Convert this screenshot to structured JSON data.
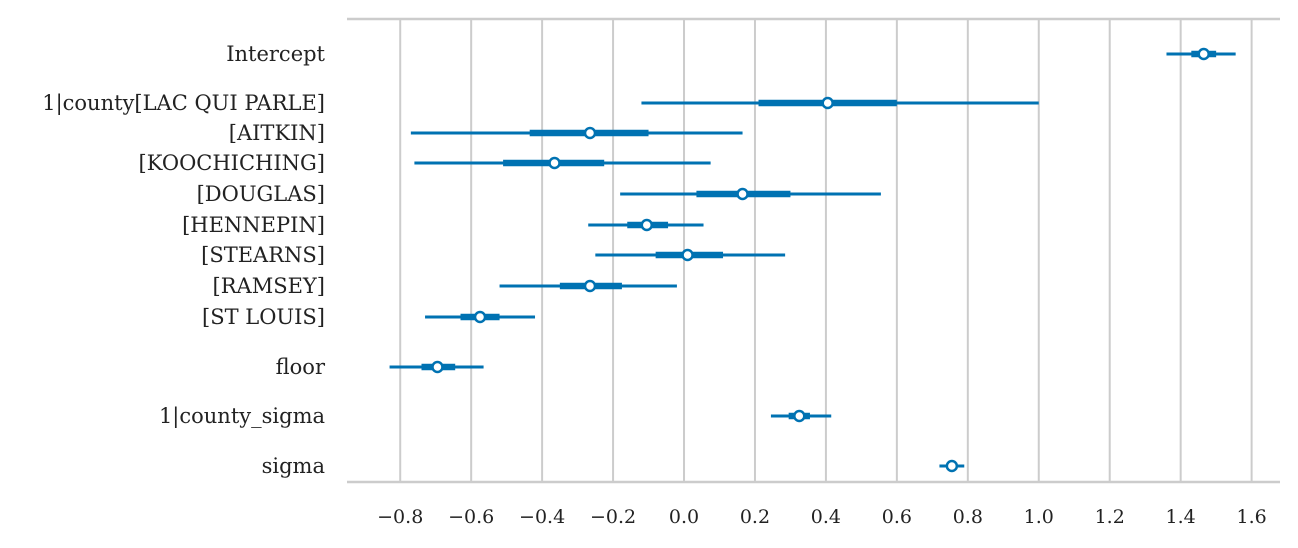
{
  "chart_data": {
    "type": "forest",
    "xlim": [
      -0.95,
      1.68
    ],
    "xticks": [
      -0.8,
      -0.6,
      -0.4,
      -0.2,
      0.0,
      0.2,
      0.4,
      0.6,
      0.8,
      1.0,
      1.2,
      1.4,
      1.6
    ],
    "xtick_labels": [
      "−0.8",
      "−0.6",
      "−0.4",
      "−0.2",
      "0.0",
      "0.2",
      "0.4",
      "0.6",
      "0.8",
      "1.0",
      "1.2",
      "1.4",
      "1.6"
    ],
    "grid": "vertical",
    "color": "#0072b2",
    "rows": [
      {
        "label": "Intercept",
        "mean": 1.465,
        "hdi94": [
          1.36,
          1.555
        ],
        "hdi50": [
          1.43,
          1.5
        ]
      },
      {
        "label": "1|county[LAC QUI PARLE]",
        "mean": 0.405,
        "hdi94": [
          -0.12,
          1.0
        ],
        "hdi50": [
          0.21,
          0.6
        ]
      },
      {
        "label": "[AITKIN]",
        "mean": -0.265,
        "hdi94": [
          -0.77,
          0.165
        ],
        "hdi50": [
          -0.435,
          -0.1
        ]
      },
      {
        "label": "[KOOCHICHING]",
        "mean": -0.365,
        "hdi94": [
          -0.76,
          0.075
        ],
        "hdi50": [
          -0.51,
          -0.225
        ]
      },
      {
        "label": "[DOUGLAS]",
        "mean": 0.165,
        "hdi94": [
          -0.18,
          0.555
        ],
        "hdi50": [
          0.035,
          0.3
        ]
      },
      {
        "label": "[HENNEPIN]",
        "mean": -0.105,
        "hdi94": [
          -0.27,
          0.055
        ],
        "hdi50": [
          -0.16,
          -0.045
        ]
      },
      {
        "label": "[STEARNS]",
        "mean": 0.01,
        "hdi94": [
          -0.25,
          0.285
        ],
        "hdi50": [
          -0.08,
          0.11
        ]
      },
      {
        "label": "[RAMSEY]",
        "mean": -0.265,
        "hdi94": [
          -0.52,
          -0.02
        ],
        "hdi50": [
          -0.35,
          -0.175
        ]
      },
      {
        "label": "[ST LOUIS]",
        "mean": -0.575,
        "hdi94": [
          -0.73,
          -0.42
        ],
        "hdi50": [
          -0.63,
          -0.52
        ]
      },
      {
        "label": "floor",
        "mean": -0.695,
        "hdi94": [
          -0.83,
          -0.565
        ],
        "hdi50": [
          -0.74,
          -0.645
        ]
      },
      {
        "label": "1|county_sigma",
        "mean": 0.325,
        "hdi94": [
          0.245,
          0.415
        ],
        "hdi50": [
          0.295,
          0.355
        ]
      },
      {
        "label": "sigma",
        "mean": 0.755,
        "hdi94": [
          0.72,
          0.79
        ],
        "hdi50": [
          0.74,
          0.77
        ]
      }
    ]
  }
}
